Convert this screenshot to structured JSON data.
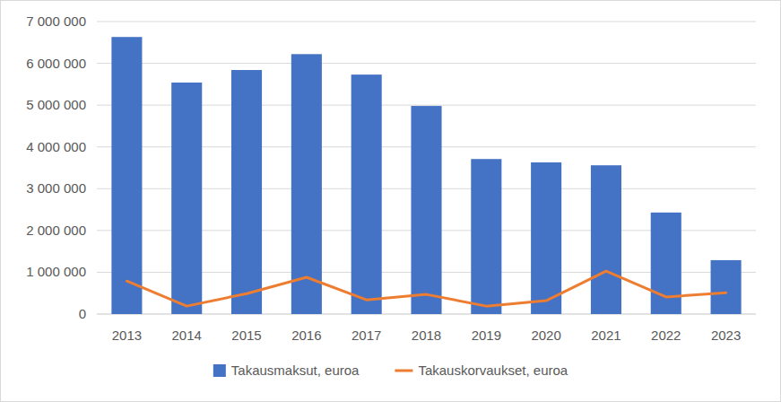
{
  "chart_data": {
    "type": "bar",
    "categories": [
      "2013",
      "2014",
      "2015",
      "2016",
      "2017",
      "2018",
      "2019",
      "2020",
      "2021",
      "2022",
      "2023"
    ],
    "series": [
      {
        "name": "Takausmaksut, euroa",
        "type": "bar",
        "color": "#4472c4",
        "values": [
          6630000,
          5540000,
          5840000,
          6220000,
          5730000,
          4980000,
          3710000,
          3630000,
          3560000,
          2430000,
          1290000
        ]
      },
      {
        "name": "Takauskorvaukset, euroa",
        "type": "line",
        "color": "#ed7d31",
        "values": [
          790000,
          190000,
          490000,
          880000,
          340000,
          470000,
          190000,
          320000,
          1030000,
          410000,
          510000
        ]
      }
    ],
    "ylim": [
      0,
      7000000
    ],
    "yticks": [
      0,
      {
        "value": 1000000,
        "label": "1 000 000"
      },
      {
        "value": 2000000,
        "label": "2 000 000"
      },
      {
        "value": 3000000,
        "label": "3 000 000"
      },
      {
        "value": 4000000,
        "label": "4 000 000"
      },
      {
        "value": 5000000,
        "label": "5 000 000"
      },
      {
        "value": 6000000,
        "label": "6 000 000"
      },
      {
        "value": 7000000,
        "label": "7 000 000"
      }
    ],
    "grid": true,
    "legend": "bottom"
  }
}
